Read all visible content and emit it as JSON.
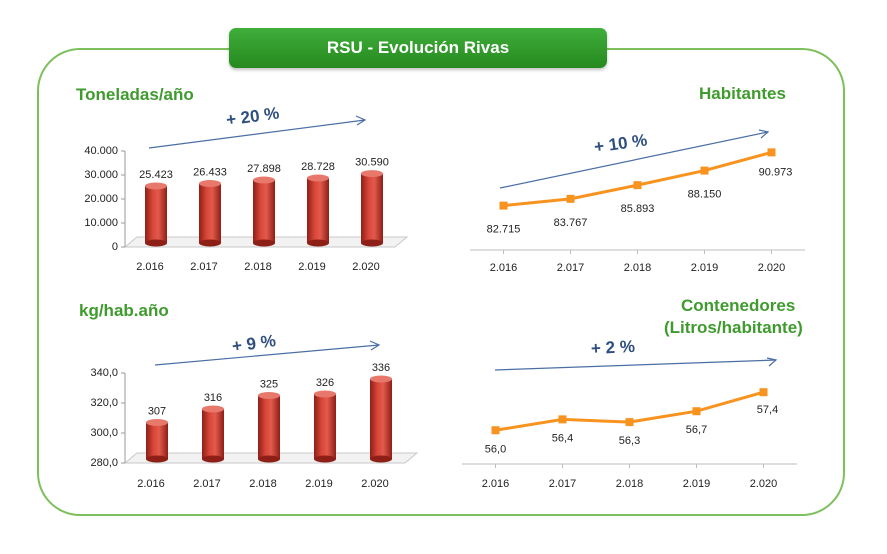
{
  "title": "RSU - Evolución Rivas",
  "chart_data": [
    {
      "id": "toneladas",
      "type": "bar",
      "title": "Toneladas/año",
      "trend_label": "+ 20 %",
      "categories": [
        "2.016",
        "2.017",
        "2.018",
        "2.019",
        "2.020"
      ],
      "values": [
        25423,
        26433,
        27898,
        28728,
        30590
      ],
      "value_labels": [
        "25.423",
        "26.433",
        "27.898",
        "28.728",
        "30.590"
      ],
      "ylim": [
        0,
        40000
      ],
      "yticks": [
        0,
        10000,
        20000,
        30000,
        40000
      ],
      "ytick_labels": [
        "0",
        "10.000",
        "20.000",
        "30.000",
        "40.000"
      ],
      "grid": false,
      "colors": {
        "bar": "#c0392b"
      }
    },
    {
      "id": "habitantes",
      "type": "line",
      "title": "Habitantes",
      "trend_label": "+ 10 %",
      "categories": [
        "2.016",
        "2.017",
        "2.018",
        "2.019",
        "2.020"
      ],
      "values": [
        82715,
        83767,
        85893,
        88150,
        90973
      ],
      "value_labels": [
        "82.715",
        "83.767",
        "85.893",
        "88.150",
        "90.973"
      ],
      "ylim": [
        78000,
        96000
      ],
      "grid": false,
      "colors": {
        "line": "#f7931e"
      }
    },
    {
      "id": "kghab",
      "type": "bar",
      "title": "kg/hab.año",
      "trend_label": "+ 9 %",
      "categories": [
        "2.016",
        "2.017",
        "2.018",
        "2.019",
        "2.020"
      ],
      "values": [
        307,
        316,
        325,
        326,
        336
      ],
      "value_labels": [
        "307",
        "316",
        "325",
        "326",
        "336"
      ],
      "ylim": [
        280,
        340
      ],
      "yticks": [
        280,
        300,
        320,
        340
      ],
      "ytick_labels": [
        "280,0",
        "300,0",
        "320,0",
        "340,0"
      ],
      "grid": false,
      "colors": {
        "bar": "#c0392b"
      }
    },
    {
      "id": "contenedores",
      "type": "line",
      "title": "Contenedores",
      "title_line2": "(Litros/habitante)",
      "trend_label": "+ 2 %",
      "categories": [
        "2.016",
        "2.017",
        "2.018",
        "2.019",
        "2.020"
      ],
      "values": [
        56.0,
        56.4,
        56.3,
        56.7,
        57.4
      ],
      "value_labels": [
        "56,0",
        "56,4",
        "56,3",
        "56,7",
        "57,4"
      ],
      "ylim": [
        55.2,
        58.4
      ],
      "grid": false,
      "colors": {
        "line": "#f7931e"
      }
    }
  ]
}
